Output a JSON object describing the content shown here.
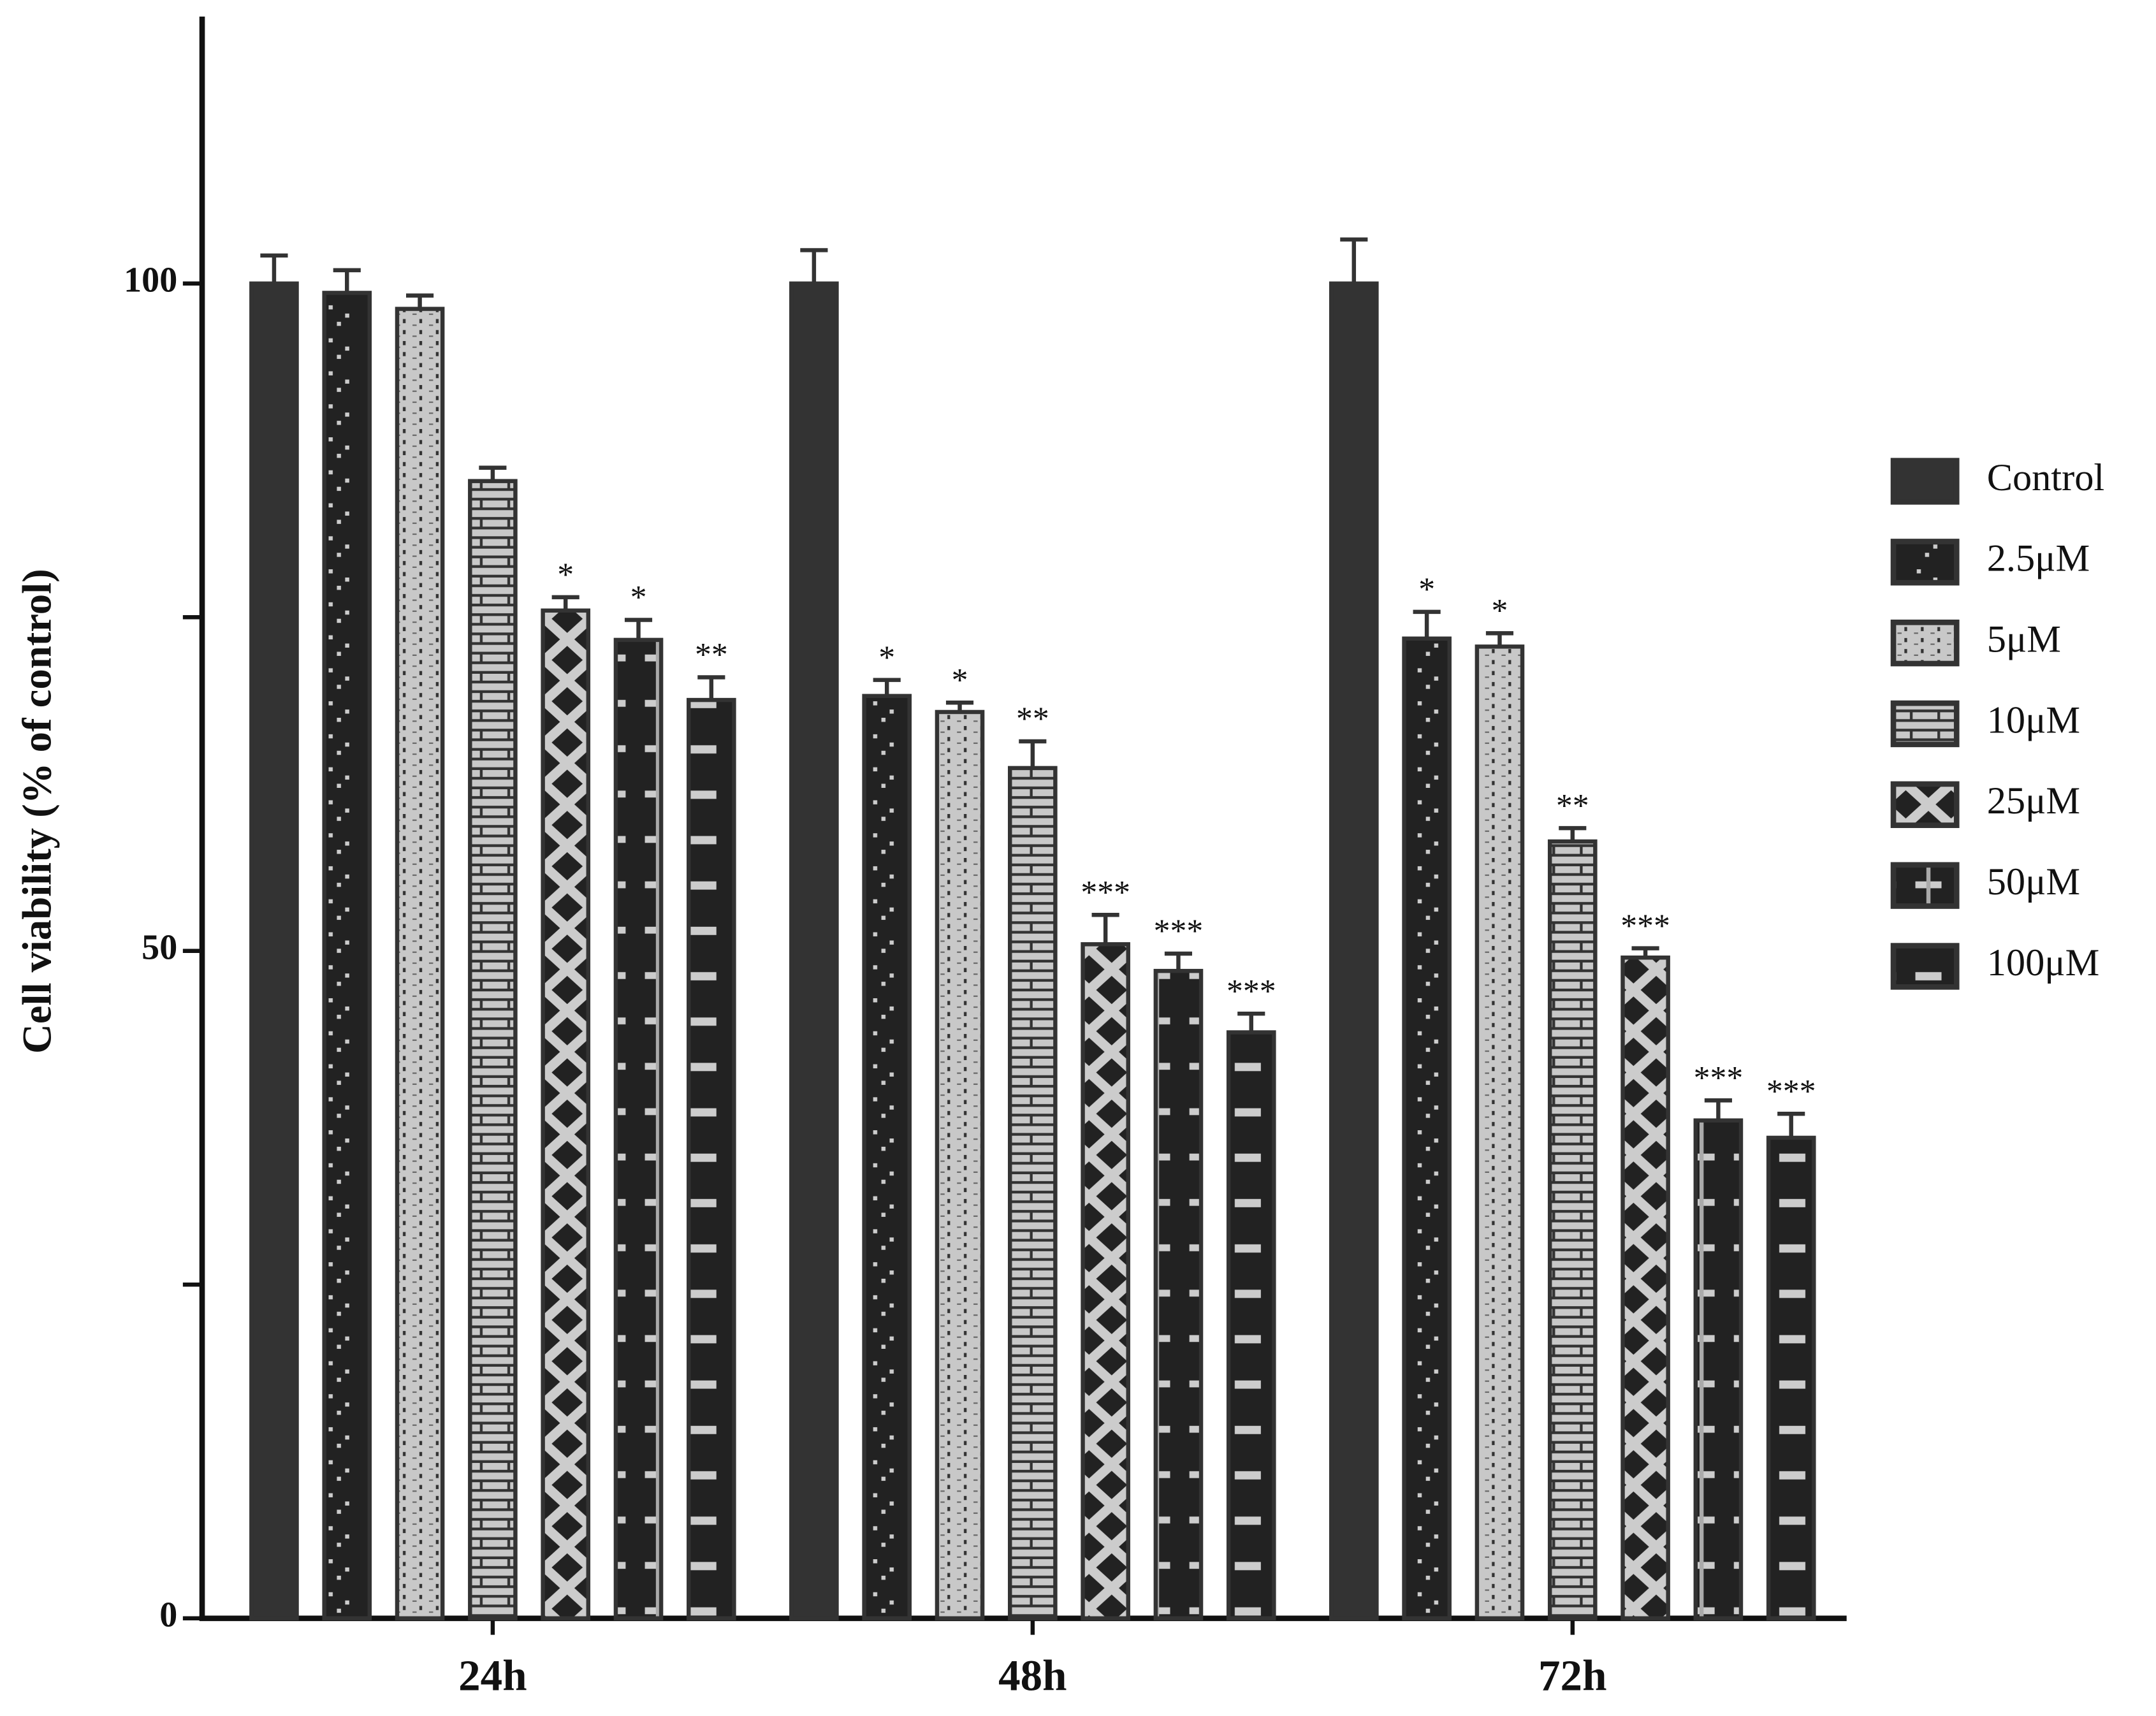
{
  "chart_data": {
    "type": "bar",
    "y_label": "Cell viability (% of control)",
    "categories": [
      "24h",
      "48h",
      "72h"
    ],
    "ylim": [
      0,
      120
    ],
    "yticks": [
      0,
      50,
      100
    ],
    "minor_yticks": [
      25,
      75
    ],
    "series": [
      {
        "name": "Control",
        "color": "#333333",
        "pattern": "solid",
        "values": [
          100,
          100,
          100
        ],
        "errors": [
          2.1,
          2.5,
          3.3
        ],
        "annotations": [
          null,
          null,
          null
        ]
      },
      {
        "name": "2.5μM",
        "color": "#333333",
        "pattern": "dots",
        "values": [
          99.3,
          69.1,
          73.4
        ],
        "errors": [
          1.7,
          1.2,
          2.0
        ],
        "annotations": [
          null,
          "*",
          "*"
        ]
      },
      {
        "name": "5μM",
        "color": "#333333",
        "pattern": "checks",
        "values": [
          98.1,
          67.9,
          72.8
        ],
        "errors": [
          1.0,
          0.7,
          1.0
        ],
        "annotations": [
          null,
          "*",
          "*"
        ]
      },
      {
        "name": "10μM",
        "color": "#333333",
        "pattern": "bricks",
        "values": [
          85.2,
          63.7,
          58.2
        ],
        "errors": [
          1.0,
          2.0,
          1.0
        ],
        "annotations": [
          null,
          "**",
          "**"
        ]
      },
      {
        "name": "25μM",
        "color": "#333333",
        "pattern": "diamonds",
        "values": [
          75.5,
          50.5,
          49.5
        ],
        "errors": [
          1.0,
          2.2,
          0.7
        ],
        "annotations": [
          "*",
          "***",
          "***"
        ]
      },
      {
        "name": "50μM",
        "color": "#333333",
        "pattern": "crosses",
        "values": [
          73.3,
          48.5,
          37.3
        ],
        "errors": [
          1.5,
          1.3,
          1.5
        ],
        "annotations": [
          "*",
          "***",
          "***"
        ]
      },
      {
        "name": "100μM",
        "color": "#333333",
        "pattern": "dashes",
        "values": [
          68.8,
          43.9,
          36.0
        ],
        "errors": [
          1.7,
          1.4,
          1.8
        ],
        "annotations": [
          "**",
          "***",
          "***"
        ]
      }
    ]
  }
}
